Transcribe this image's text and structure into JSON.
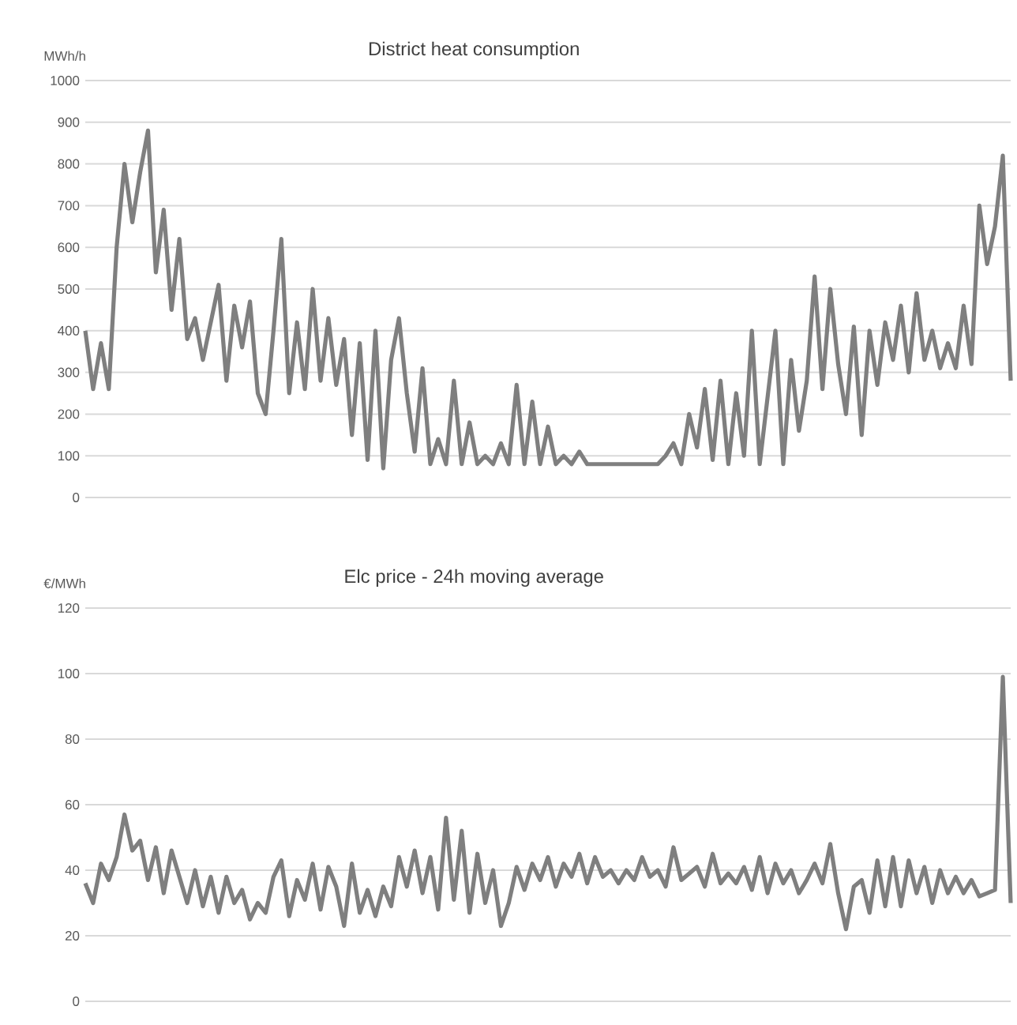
{
  "chart_data": [
    {
      "type": "line",
      "title": "District heat consumption",
      "ylabel": "MWh/h",
      "color": "#7f7f7f",
      "grid": "y",
      "tick_labels": "y",
      "ylim": [
        0,
        1000
      ],
      "yticks": [
        0,
        100,
        200,
        300,
        400,
        500,
        600,
        700,
        800,
        900,
        1000
      ],
      "categories": [
        null,
        null,
        null,
        null,
        null,
        null,
        null,
        null,
        null,
        null,
        null,
        null,
        null,
        null,
        null,
        null,
        null,
        null,
        null,
        null,
        null,
        null,
        null,
        null,
        null,
        null,
        null,
        null,
        null,
        null,
        null,
        null,
        null,
        null,
        null,
        null,
        null,
        null,
        null,
        null,
        null,
        null,
        null,
        null,
        null,
        null,
        null,
        null,
        null,
        null,
        null,
        null,
        null,
        null,
        null,
        null,
        null,
        null,
        null,
        null,
        null,
        null,
        null,
        null,
        null,
        null,
        null,
        null,
        null,
        null,
        null,
        null,
        null,
        null,
        null,
        null,
        null,
        null,
        null,
        null,
        null,
        null,
        null,
        null,
        null,
        null,
        null,
        null,
        null,
        null,
        null,
        null,
        null,
        null,
        null,
        null,
        null,
        null,
        null,
        null,
        null,
        null,
        null,
        null,
        null,
        null,
        null,
        null,
        null,
        null,
        null,
        null,
        null,
        null,
        null,
        null,
        null,
        null,
        null
      ],
      "values": [
        400,
        260,
        370,
        260,
        600,
        800,
        660,
        780,
        880,
        540,
        690,
        450,
        620,
        380,
        430,
        330,
        420,
        510,
        280,
        460,
        360,
        470,
        250,
        200,
        400,
        620,
        250,
        420,
        260,
        500,
        280,
        430,
        270,
        380,
        150,
        370,
        90,
        400,
        70,
        330,
        430,
        250,
        110,
        310,
        80,
        140,
        80,
        280,
        80,
        180,
        80,
        100,
        80,
        130,
        80,
        270,
        80,
        230,
        80,
        170,
        80,
        100,
        80,
        110,
        80,
        80,
        80,
        80,
        80,
        80,
        80,
        80,
        80,
        80,
        100,
        130,
        80,
        200,
        120,
        260,
        90,
        280,
        80,
        250,
        100,
        400,
        80,
        240,
        400,
        80,
        330,
        160,
        280,
        530,
        260,
        500,
        320,
        200,
        410,
        150,
        400,
        270,
        420,
        330,
        460,
        300,
        490,
        330,
        400,
        310,
        370,
        310,
        460,
        320,
        700,
        560,
        650,
        820,
        280
      ]
    },
    {
      "type": "line",
      "title": "Elc price - 24h moving average",
      "ylabel": "€/MWh",
      "color": "#7f7f7f",
      "grid": "y",
      "tick_labels": "y",
      "ylim": [
        0,
        120
      ],
      "yticks": [
        0,
        20,
        40,
        60,
        80,
        100,
        120
      ],
      "categories": [
        null,
        null,
        null,
        null,
        null,
        null,
        null,
        null,
        null,
        null,
        null,
        null,
        null,
        null,
        null,
        null,
        null,
        null,
        null,
        null,
        null,
        null,
        null,
        null,
        null,
        null,
        null,
        null,
        null,
        null,
        null,
        null,
        null,
        null,
        null,
        null,
        null,
        null,
        null,
        null,
        null,
        null,
        null,
        null,
        null,
        null,
        null,
        null,
        null,
        null,
        null,
        null,
        null,
        null,
        null,
        null,
        null,
        null,
        null,
        null,
        null,
        null,
        null,
        null,
        null,
        null,
        null,
        null,
        null,
        null,
        null,
        null,
        null,
        null,
        null,
        null,
        null,
        null,
        null,
        null,
        null,
        null,
        null,
        null,
        null,
        null,
        null,
        null,
        null,
        null,
        null,
        null,
        null,
        null,
        null,
        null,
        null,
        null,
        null,
        null,
        null,
        null,
        null,
        null,
        null,
        null,
        null,
        null,
        null,
        null,
        null,
        null,
        null,
        null,
        null,
        null,
        null,
        null,
        null
      ],
      "values": [
        36,
        30,
        42,
        37,
        44,
        57,
        46,
        49,
        37,
        47,
        33,
        46,
        38,
        30,
        40,
        29,
        38,
        27,
        38,
        30,
        34,
        25,
        30,
        27,
        38,
        43,
        26,
        37,
        31,
        42,
        28,
        41,
        35,
        23,
        42,
        27,
        34,
        26,
        35,
        29,
        44,
        35,
        46,
        33,
        44,
        28,
        56,
        31,
        52,
        27,
        45,
        30,
        40,
        23,
        30,
        41,
        34,
        42,
        37,
        44,
        35,
        42,
        38,
        45,
        36,
        44,
        38,
        40,
        36,
        40,
        37,
        44,
        38,
        40,
        35,
        47,
        37,
        39,
        41,
        35,
        45,
        36,
        39,
        36,
        41,
        34,
        44,
        33,
        42,
        36,
        40,
        33,
        37,
        42,
        36,
        48,
        33,
        22,
        35,
        37,
        27,
        43,
        29,
        44,
        29,
        43,
        33,
        41,
        30,
        40,
        33,
        38,
        33,
        37,
        32,
        33,
        34,
        99,
        30
      ]
    }
  ]
}
